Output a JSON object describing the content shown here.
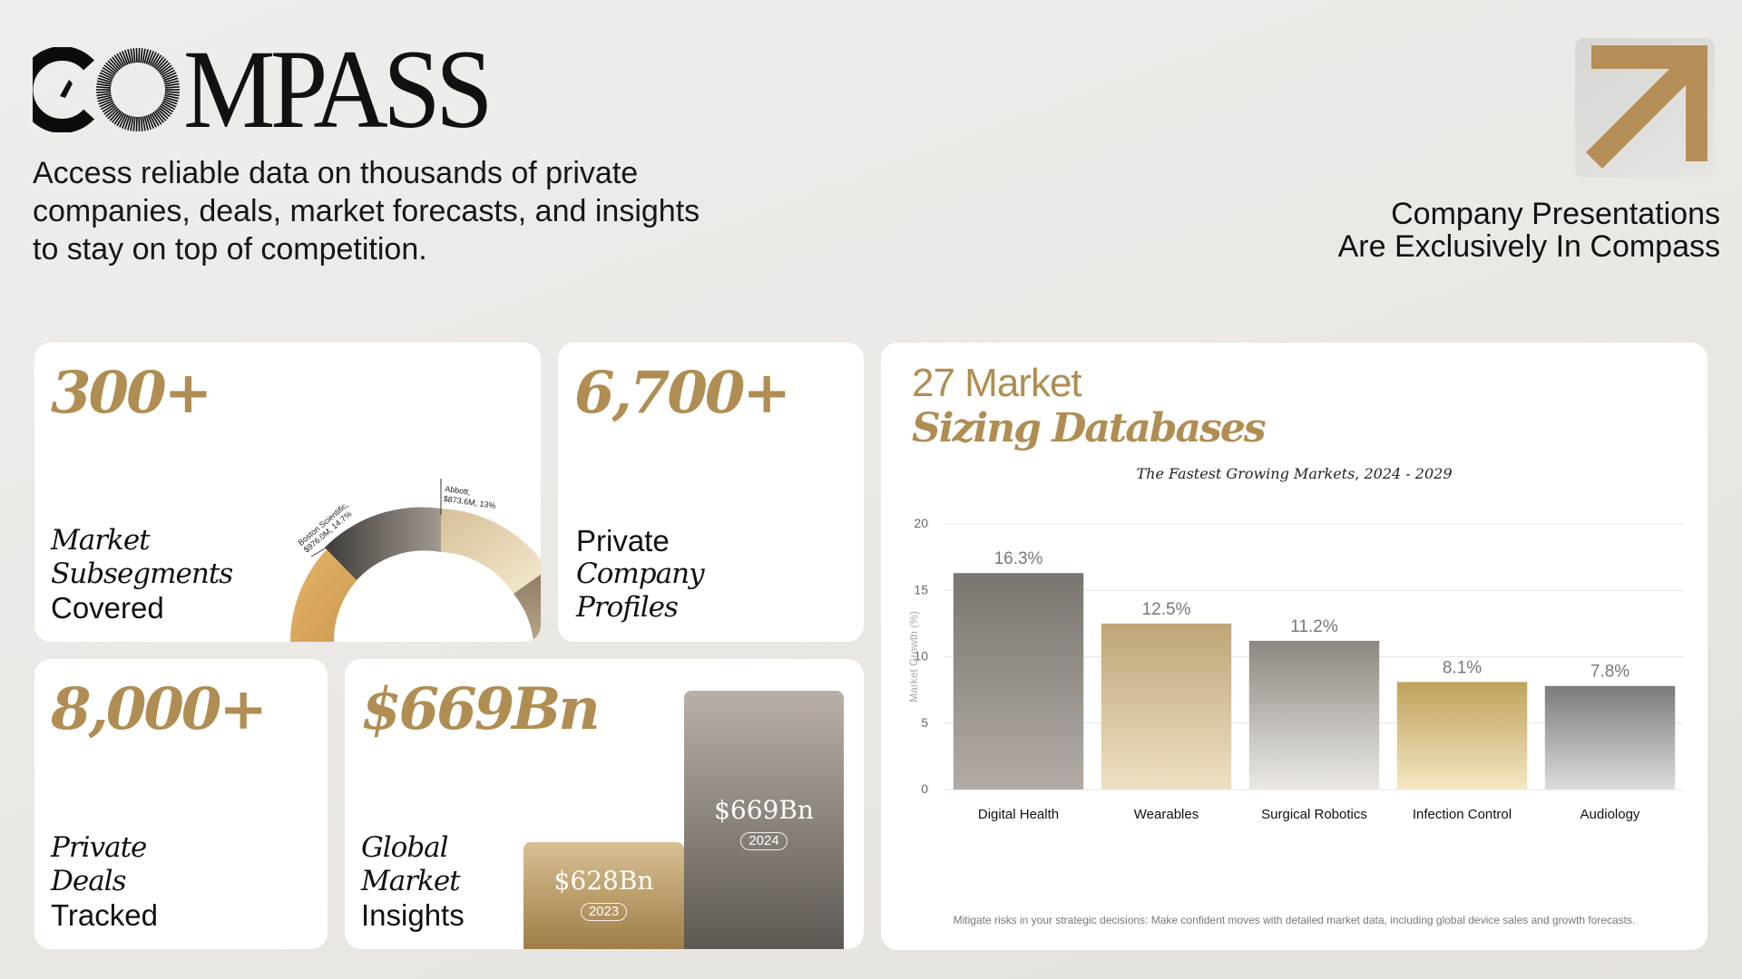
{
  "brand": {
    "logo_text": "MPASS",
    "logo_full": "COMPASS"
  },
  "header": {
    "tagline": "Access reliable data on thousands of private companies, deals, market forecasts, and insights to stay on top of competition.",
    "right_line1": "Company Presentations",
    "right_line2": "Are Exclusively In Compass"
  },
  "colors": {
    "gold": "#b08d52",
    "text": "#111111",
    "card_bg": "#ffffff"
  },
  "icons": {
    "arrow": "arrow-up-right-icon"
  },
  "card_subsegments": {
    "value": "300+",
    "label": [
      "Market",
      "Subsegments",
      "Covered"
    ],
    "donut_labels": {
      "boston_line1": "Boston Scientific,",
      "boston_line2": "$976.0M, 14.7%",
      "abbott_line1": "Abbott,",
      "abbott_line2": "$873.6M, 13%"
    }
  },
  "card_profiles": {
    "value": "6,700+",
    "label": [
      "Private",
      "Company",
      "Profiles"
    ]
  },
  "card_deals": {
    "value": "8,000+",
    "label": [
      "Private",
      "Deals",
      "Tracked"
    ]
  },
  "card_insights": {
    "value": "$669Bn",
    "label": [
      "Global",
      "Market",
      "Insights"
    ],
    "bars": [
      {
        "value_label": "$628Bn",
        "year": "2023",
        "value": 628
      },
      {
        "value_label": "$669Bn",
        "year": "2024",
        "value": 669
      }
    ]
  },
  "card_market": {
    "heading_line1": "27 Market",
    "heading_line2": "Sizing Databases",
    "footnote": "Mitigate risks in your strategic decisions: Make confident moves with detailed market data, including global device sales and growth forecasts."
  },
  "chart_data": {
    "type": "bar",
    "title": "The Fastest Growing Markets, 2024 - 2029",
    "xlabel": "",
    "ylabel": "Market Growth (%)",
    "categories": [
      "Digital Health",
      "Wearables",
      "Surgical Robotics",
      "Infection Control",
      "Audiology"
    ],
    "values": [
      16.3,
      12.5,
      11.2,
      8.1,
      7.8
    ],
    "value_labels": [
      "16.3%",
      "12.5%",
      "11.2%",
      "8.1%",
      "7.8%"
    ],
    "yticks": [
      0,
      5,
      10,
      15,
      20
    ],
    "ylim": [
      0,
      20
    ],
    "grid": true
  }
}
